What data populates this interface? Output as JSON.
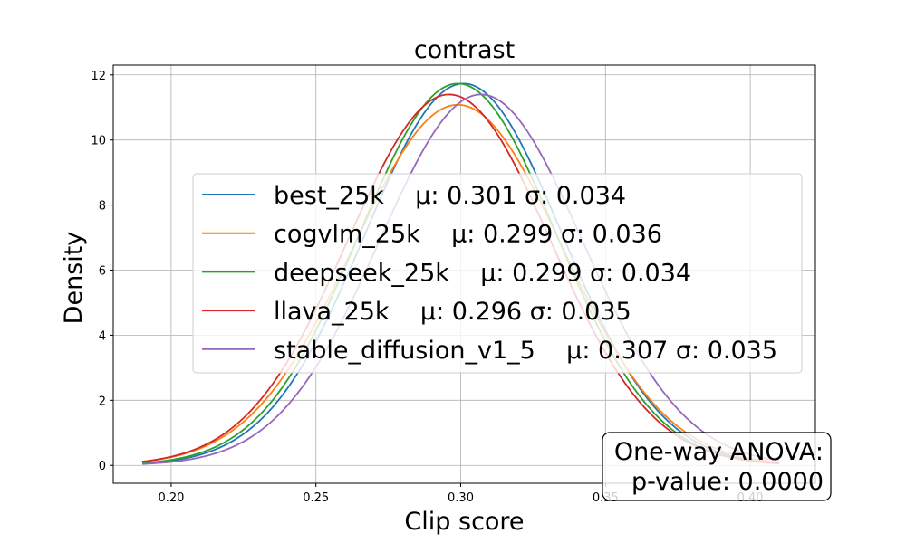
{
  "chart_data": {
    "type": "line",
    "title": "contrast",
    "xlabel": "Clip score",
    "ylabel": "Density",
    "xlim": [
      0.18,
      0.4225
    ],
    "ylim": [
      -0.55,
      12.3
    ],
    "xticks": [
      0.2,
      0.25,
      0.3,
      0.35,
      0.4
    ],
    "xtick_labels": [
      "0.20",
      "0.25",
      "0.30",
      "0.35",
      "0.40"
    ],
    "yticks": [
      0,
      2,
      4,
      6,
      8,
      10,
      12
    ],
    "ytick_labels": [
      "0",
      "2",
      "4",
      "6",
      "8",
      "10",
      "12"
    ],
    "grid": true,
    "legend_position": "center",
    "series": [
      {
        "name": "best_25k",
        "label": "best_25k    μ: 0.301 σ: 0.034",
        "mean": 0.301,
        "std": 0.034,
        "x_range": [
          0.19,
          0.41
        ],
        "color": "#1f77b4"
      },
      {
        "name": "cogvlm_25k",
        "label": "cogvlm_25k    μ: 0.299 σ: 0.036",
        "mean": 0.299,
        "std": 0.036,
        "x_range": [
          0.19,
          0.41
        ],
        "color": "#ff7f0e"
      },
      {
        "name": "deepseek_25k",
        "label": "deepseek_25k    μ: 0.299 σ: 0.034",
        "mean": 0.299,
        "std": 0.034,
        "x_range": [
          0.19,
          0.41
        ],
        "color": "#2ca02c"
      },
      {
        "name": "llava_25k",
        "label": "llava_25k    μ: 0.296 σ: 0.035",
        "mean": 0.296,
        "std": 0.035,
        "x_range": [
          0.19,
          0.41
        ],
        "color": "#d62728"
      },
      {
        "name": "stable_diffusion_v1_5",
        "label": "stable_diffusion_v1_5    μ: 0.307 σ: 0.035",
        "mean": 0.307,
        "std": 0.035,
        "x_range": [
          0.19,
          0.41
        ],
        "color": "#9467bd"
      }
    ],
    "annotation": {
      "line1": "One-way ANOVA:",
      "line2": "p-value: 0.0000",
      "position": "bottom-right"
    }
  }
}
